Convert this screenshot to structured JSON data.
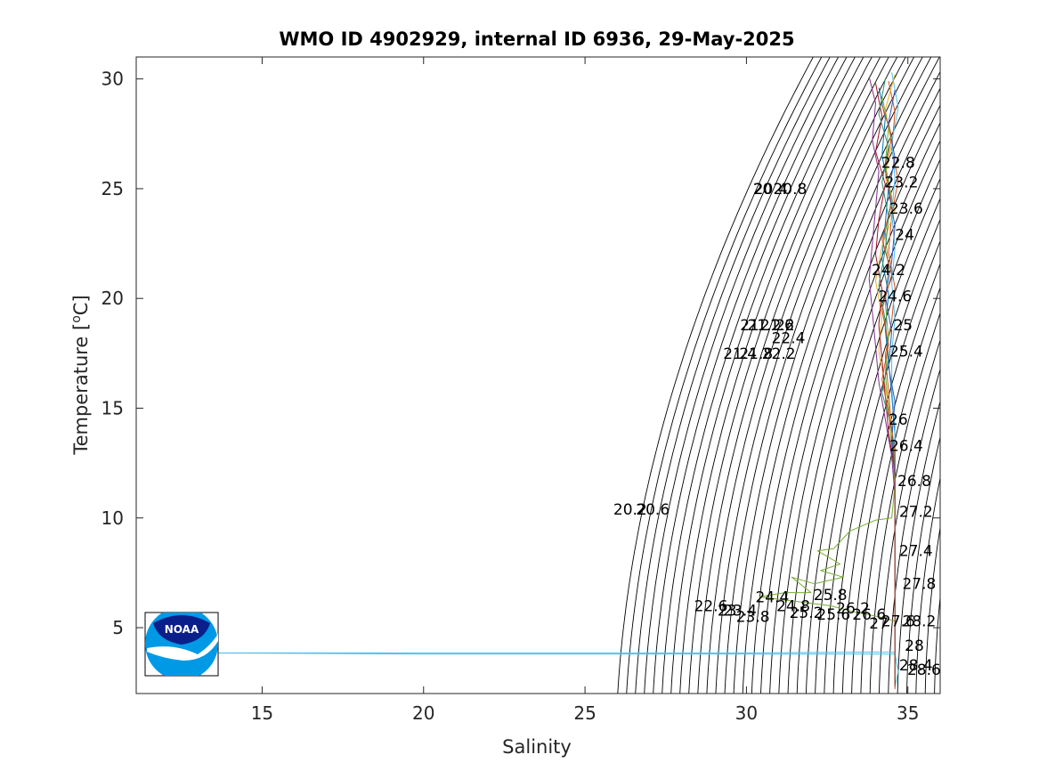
{
  "chart_data": {
    "type": "line",
    "title": "WMO ID 4902929, internal ID 6936, 29-May-2025",
    "xlabel": "Salinity",
    "ylabel": "Temperature [",
    "ylabel_sup": "o",
    "ylabel_end": "C]",
    "xlim": [
      11.1,
      36
    ],
    "ylim": [
      2,
      31
    ],
    "xticks": [
      15,
      20,
      25,
      30,
      35
    ],
    "yticks": [
      5,
      10,
      15,
      20,
      25,
      30
    ],
    "grid": false,
    "legend": "none",
    "density_contours": {
      "sigma_min": 19.8,
      "sigma_max": 28.6,
      "step": 0.2,
      "color": "#000000",
      "labels": [
        {
          "text": "20",
          "s": 30.5,
          "t": 25.0
        },
        {
          "text": "20.4",
          "s": 30.75,
          "t": 25.0
        },
        {
          "text": "20.8",
          "s": 31.35,
          "t": 25.0
        },
        {
          "text": "21",
          "s": 30.1,
          "t": 18.8
        },
        {
          "text": "21.2",
          "s": 30.55,
          "t": 18.8
        },
        {
          "text": "21.6",
          "s": 30.95,
          "t": 18.8
        },
        {
          "text": "22",
          "s": 31.2,
          "t": 18.8
        },
        {
          "text": "22.4",
          "s": 31.3,
          "t": 18.2
        },
        {
          "text": "21.4",
          "s": 29.8,
          "t": 17.5
        },
        {
          "text": "21.8",
          "s": 30.3,
          "t": 17.5
        },
        {
          "text": "22.2",
          "s": 31.0,
          "t": 17.5
        },
        {
          "text": "20.2",
          "s": 26.4,
          "t": 10.4
        },
        {
          "text": "20.6",
          "s": 27.1,
          "t": 10.4
        },
        {
          "text": "22.8",
          "s": 34.7,
          "t": 26.2
        },
        {
          "text": "23.2",
          "s": 34.8,
          "t": 25.3
        },
        {
          "text": "23.6",
          "s": 34.95,
          "t": 24.1
        },
        {
          "text": "24",
          "s": 34.9,
          "t": 22.9
        },
        {
          "text": "24.2",
          "s": 34.4,
          "t": 21.3
        },
        {
          "text": "24.6",
          "s": 34.6,
          "t": 20.1
        },
        {
          "text": "25",
          "s": 34.85,
          "t": 18.8
        },
        {
          "text": "25.4",
          "s": 34.95,
          "t": 17.6
        },
        {
          "text": "26",
          "s": 34.7,
          "t": 14.5
        },
        {
          "text": "26.4",
          "s": 34.95,
          "t": 13.3
        },
        {
          "text": "26.8",
          "s": 35.2,
          "t": 11.7
        },
        {
          "text": "27.2",
          "s": 35.25,
          "t": 10.3
        },
        {
          "text": "27.4",
          "s": 35.25,
          "t": 8.5
        },
        {
          "text": "27.8",
          "s": 35.35,
          "t": 7.0
        },
        {
          "text": "24.4",
          "s": 30.8,
          "t": 6.4
        },
        {
          "text": "24.8",
          "s": 31.45,
          "t": 6.0
        },
        {
          "text": "25.8",
          "s": 32.6,
          "t": 6.5
        },
        {
          "text": "25.2",
          "s": 31.85,
          "t": 5.7
        },
        {
          "text": "26.2",
          "s": 33.3,
          "t": 5.9
        },
        {
          "text": "25.6",
          "s": 32.7,
          "t": 5.6
        },
        {
          "text": "26.6",
          "s": 33.8,
          "t": 5.6
        },
        {
          "text": "22.6",
          "s": 28.9,
          "t": 6.0
        },
        {
          "text": "23",
          "s": 29.4,
          "t": 5.8
        },
        {
          "text": "23.4",
          "s": 29.8,
          "t": 5.8
        },
        {
          "text": "23.8",
          "s": 30.2,
          "t": 5.5
        },
        {
          "text": "27",
          "s": 34.1,
          "t": 5.2
        },
        {
          "text": "27.6",
          "s": 34.7,
          "t": 5.3
        },
        {
          "text": "28.2",
          "s": 35.35,
          "t": 5.3
        },
        {
          "text": "28",
          "s": 35.2,
          "t": 4.2
        },
        {
          "text": "28.4",
          "s": 35.25,
          "t": 3.3
        },
        {
          "text": "28.6",
          "s": 35.5,
          "t": 3.1
        }
      ]
    },
    "series": [
      {
        "color": "#0072BD",
        "points": [
          [
            34.1,
            29.6
          ],
          [
            34.3,
            28.2
          ],
          [
            34.2,
            26.5
          ],
          [
            34.4,
            25.1
          ],
          [
            34.3,
            23.4
          ],
          [
            34.2,
            21.8
          ],
          [
            34.4,
            20.2
          ],
          [
            34.3,
            18.6
          ],
          [
            34.4,
            17.1
          ],
          [
            34.5,
            15.6
          ],
          [
            34.6,
            13.8
          ],
          [
            34.6,
            12.0
          ],
          [
            34.6,
            10.1
          ],
          [
            34.6,
            8.2
          ],
          [
            34.6,
            6.4
          ],
          [
            34.6,
            4.8
          ],
          [
            34.6,
            3.6
          ],
          [
            34.6,
            2.5
          ]
        ]
      },
      {
        "color": "#D95319",
        "points": [
          [
            34.4,
            29.9
          ],
          [
            34.6,
            28.5
          ],
          [
            34.5,
            26.8
          ],
          [
            34.7,
            25.4
          ],
          [
            34.5,
            23.8
          ],
          [
            34.4,
            22.1
          ],
          [
            34.6,
            20.5
          ],
          [
            34.5,
            19.0
          ],
          [
            34.3,
            17.4
          ],
          [
            34.4,
            15.8
          ],
          [
            34.5,
            14.0
          ],
          [
            34.6,
            12.3
          ],
          [
            34.6,
            10.5
          ],
          [
            34.6,
            8.5
          ],
          [
            34.6,
            6.6
          ],
          [
            34.6,
            5.0
          ],
          [
            34.6,
            3.8
          ],
          [
            34.6,
            2.4
          ]
        ]
      },
      {
        "color": "#EDB120",
        "points": [
          [
            34.6,
            30.2
          ],
          [
            34.3,
            28.6
          ],
          [
            34.5,
            27.0
          ],
          [
            34.3,
            25.6
          ],
          [
            34.6,
            24.0
          ],
          [
            34.2,
            22.4
          ],
          [
            34.0,
            20.8
          ],
          [
            34.2,
            19.2
          ],
          [
            34.1,
            17.6
          ],
          [
            34.3,
            16.0
          ],
          [
            34.5,
            14.3
          ],
          [
            34.6,
            12.6
          ],
          [
            34.6,
            10.8
          ],
          [
            34.6,
            8.8
          ],
          [
            34.6,
            6.8
          ],
          [
            34.6,
            5.1
          ],
          [
            34.6,
            3.7
          ],
          [
            34.6,
            2.6
          ]
        ]
      },
      {
        "color": "#7E2F8E",
        "points": [
          [
            33.8,
            30.1
          ],
          [
            34.0,
            28.9
          ],
          [
            33.9,
            27.2
          ],
          [
            34.1,
            25.8
          ],
          [
            34.0,
            24.1
          ],
          [
            33.9,
            22.5
          ],
          [
            33.8,
            20.9
          ],
          [
            33.9,
            19.4
          ],
          [
            34.0,
            17.8
          ],
          [
            34.1,
            16.2
          ],
          [
            34.3,
            14.5
          ],
          [
            34.5,
            12.8
          ],
          [
            34.6,
            11.0
          ],
          [
            34.6,
            9.0
          ],
          [
            34.6,
            7.0
          ],
          [
            34.6,
            5.2
          ],
          [
            34.6,
            3.9
          ],
          [
            34.6,
            2.5
          ]
        ]
      },
      {
        "color": "#77AC30",
        "points": [
          [
            34.2,
            29.2
          ],
          [
            34.4,
            27.8
          ],
          [
            34.3,
            26.1
          ],
          [
            34.5,
            24.6
          ],
          [
            34.3,
            23.0
          ],
          [
            34.4,
            21.4
          ],
          [
            34.3,
            19.8
          ],
          [
            34.4,
            18.2
          ],
          [
            34.3,
            16.6
          ],
          [
            34.4,
            15.0
          ],
          [
            34.5,
            13.3
          ],
          [
            34.6,
            11.5
          ],
          [
            34.5,
            10.0
          ],
          [
            34.0,
            9.9
          ],
          [
            33.2,
            9.4
          ],
          [
            32.7,
            8.6
          ],
          [
            32.2,
            8.5
          ],
          [
            32.9,
            7.9
          ],
          [
            32.3,
            7.6
          ],
          [
            33.0,
            7.3
          ],
          [
            32.1,
            7.0
          ],
          [
            31.4,
            7.3
          ],
          [
            32.0,
            6.6
          ],
          [
            31.2,
            6.6
          ],
          [
            30.4,
            6.4
          ],
          [
            31.5,
            6.2
          ],
          [
            32.6,
            6.0
          ],
          [
            33.4,
            5.7
          ],
          [
            34.1,
            5.5
          ],
          [
            34.6,
            5.3
          ],
          [
            34.6,
            4.1
          ],
          [
            34.6,
            2.7
          ]
        ]
      },
      {
        "color": "#4DBEEE",
        "points": [
          [
            34.5,
            30.3
          ],
          [
            34.7,
            28.7
          ],
          [
            34.5,
            27.1
          ],
          [
            34.6,
            25.5
          ],
          [
            34.5,
            23.9
          ],
          [
            34.6,
            22.3
          ],
          [
            34.5,
            20.7
          ],
          [
            34.6,
            19.1
          ],
          [
            34.5,
            17.5
          ],
          [
            34.5,
            15.9
          ],
          [
            34.6,
            14.2
          ],
          [
            34.6,
            12.4
          ],
          [
            34.6,
            10.6
          ],
          [
            34.6,
            8.7
          ],
          [
            34.6,
            6.7
          ],
          [
            34.6,
            5.0
          ],
          [
            34.6,
            3.9
          ],
          [
            30.0,
            3.85
          ],
          [
            20.0,
            3.85
          ],
          [
            13.5,
            3.85
          ],
          [
            20.0,
            3.8
          ],
          [
            30.0,
            3.8
          ],
          [
            34.6,
            3.8
          ],
          [
            34.7,
            3.0
          ],
          [
            34.6,
            2.3
          ]
        ]
      },
      {
        "color": "#A2142F",
        "points": [
          [
            34.0,
            29.8
          ],
          [
            34.2,
            28.3
          ],
          [
            34.0,
            26.7
          ],
          [
            34.3,
            25.2
          ],
          [
            34.1,
            23.6
          ],
          [
            34.0,
            22.0
          ],
          [
            34.2,
            20.4
          ],
          [
            34.1,
            18.8
          ],
          [
            34.2,
            17.2
          ],
          [
            34.3,
            15.6
          ],
          [
            34.4,
            13.9
          ],
          [
            34.6,
            12.1
          ],
          [
            34.6,
            10.2
          ],
          [
            34.6,
            8.3
          ],
          [
            34.6,
            6.5
          ],
          [
            34.6,
            4.9
          ],
          [
            34.6,
            3.6
          ],
          [
            34.6,
            2.4
          ]
        ]
      },
      {
        "color": "#2F8F6F",
        "points": [
          [
            34.3,
            30.0
          ],
          [
            34.1,
            28.4
          ],
          [
            34.4,
            26.9
          ],
          [
            34.2,
            25.3
          ],
          [
            34.4,
            23.7
          ],
          [
            34.3,
            22.2
          ],
          [
            34.1,
            20.6
          ],
          [
            34.3,
            19.0
          ],
          [
            34.4,
            17.3
          ],
          [
            34.2,
            15.7
          ],
          [
            34.5,
            14.1
          ],
          [
            34.6,
            12.2
          ],
          [
            34.6,
            10.4
          ],
          [
            34.6,
            8.4
          ],
          [
            34.6,
            6.5
          ],
          [
            34.6,
            4.9
          ],
          [
            34.6,
            3.5
          ],
          [
            34.6,
            2.5
          ]
        ]
      },
      {
        "color": "#3355BB",
        "points": [
          [
            34.6,
            29.5
          ],
          [
            34.4,
            28.0
          ],
          [
            34.6,
            26.4
          ],
          [
            34.4,
            24.9
          ],
          [
            34.6,
            23.3
          ],
          [
            34.5,
            21.7
          ],
          [
            34.3,
            20.1
          ],
          [
            34.5,
            18.5
          ],
          [
            34.4,
            16.9
          ],
          [
            34.6,
            15.3
          ],
          [
            34.5,
            13.6
          ],
          [
            34.6,
            11.8
          ],
          [
            34.6,
            9.9
          ],
          [
            34.6,
            8.0
          ],
          [
            34.6,
            6.2
          ],
          [
            34.6,
            4.7
          ],
          [
            34.6,
            3.4
          ],
          [
            34.6,
            2.3
          ]
        ]
      },
      {
        "color": "#C05020",
        "points": [
          [
            34.2,
            28.8
          ],
          [
            34.5,
            27.4
          ],
          [
            34.3,
            25.9
          ],
          [
            34.5,
            24.3
          ],
          [
            34.2,
            22.7
          ],
          [
            34.5,
            21.1
          ],
          [
            34.2,
            19.5
          ],
          [
            34.4,
            17.9
          ],
          [
            34.2,
            16.3
          ],
          [
            34.4,
            14.8
          ],
          [
            34.6,
            13.1
          ],
          [
            34.6,
            11.3
          ],
          [
            34.6,
            9.5
          ],
          [
            34.6,
            7.6
          ],
          [
            34.6,
            5.8
          ],
          [
            34.6,
            4.4
          ],
          [
            34.6,
            3.2
          ],
          [
            34.6,
            2.2
          ]
        ]
      }
    ]
  },
  "logo": {
    "text": "NOAA"
  }
}
